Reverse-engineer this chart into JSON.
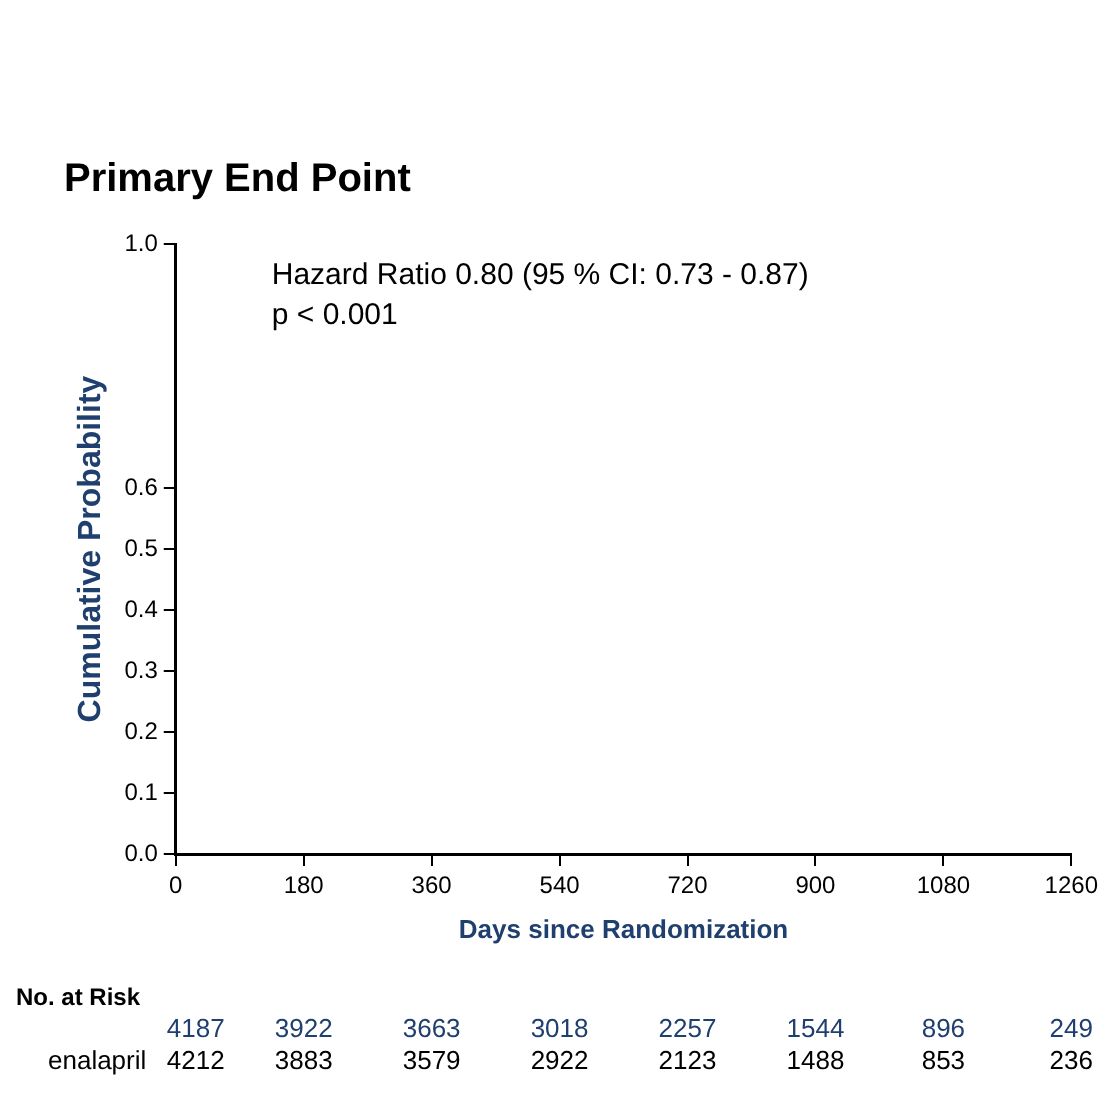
{
  "chart_data": {
    "type": "line",
    "title": "Primary End Point",
    "xlabel": "Days since Randomization",
    "ylabel": "Cumulative Probability",
    "xlim": [
      0,
      1260
    ],
    "xticks": [
      0,
      180,
      360,
      540,
      720,
      900,
      1080,
      1260
    ],
    "ylim": [
      0,
      1
    ],
    "yticks": [
      {
        "value": 0,
        "label": "0.0"
      },
      0.1,
      0.2,
      0.3,
      0.4,
      0.5,
      0.6,
      {
        "value": 1,
        "label": "1.0"
      }
    ],
    "grid": false,
    "legend": false,
    "annotations": [
      "Hazard Ratio 0.80 (95 % CI: 0.73 - 0.87)",
      "p < 0.001",
      "No. at Risk",
      "enalapril",
      "4187",
      "3922",
      "3663",
      "3018",
      "2257",
      "1544",
      "896",
      "249",
      "4212",
      "3883",
      "3579",
      "2922",
      "2123",
      "1488",
      "853",
      "236"
    ]
  }
}
